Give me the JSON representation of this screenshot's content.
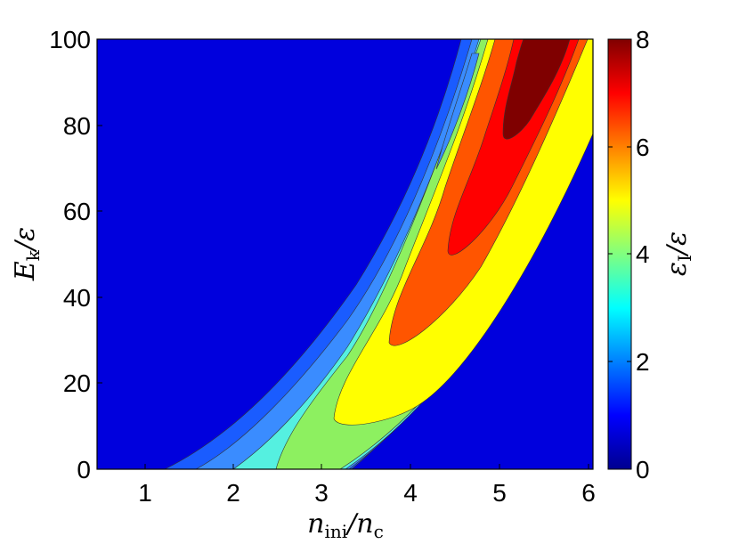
{
  "chart_data": {
    "type": "contour",
    "xlabel": {
      "main": "n",
      "sub": "ini",
      "sep": "/n",
      "sub2": "c"
    },
    "ylabel": {
      "main": "E",
      "sub": "k",
      "sep": "/ε"
    },
    "colorbar_label": {
      "main": "ε",
      "sub": "I",
      "sep": "/ε"
    },
    "xlim": [
      0.5,
      6
    ],
    "ylim": [
      0,
      100
    ],
    "clim": [
      0,
      8
    ],
    "colormap": "jet",
    "xticks": [
      "1",
      "2",
      "3",
      "4",
      "5",
      "6"
    ],
    "yticks": [
      "0",
      "20",
      "40",
      "60",
      "80",
      "100"
    ],
    "cticks": [
      "0",
      "2",
      "4",
      "6",
      "8"
    ],
    "contour_levels": [
      0.5,
      1,
      2,
      3,
      4,
      5,
      6,
      7
    ],
    "ridge": {
      "description": "ridge of maximum along a parabolic curve",
      "points": [
        {
          "x": 1.2,
          "y": 0
        },
        {
          "x": 2.0,
          "y": 5
        },
        {
          "x": 3.0,
          "y": 15
        },
        {
          "x": 4.0,
          "y": 35
        },
        {
          "x": 5.0,
          "y": 70
        },
        {
          "x": 5.6,
          "y": 100
        }
      ],
      "peak_value": 7.6
    }
  }
}
